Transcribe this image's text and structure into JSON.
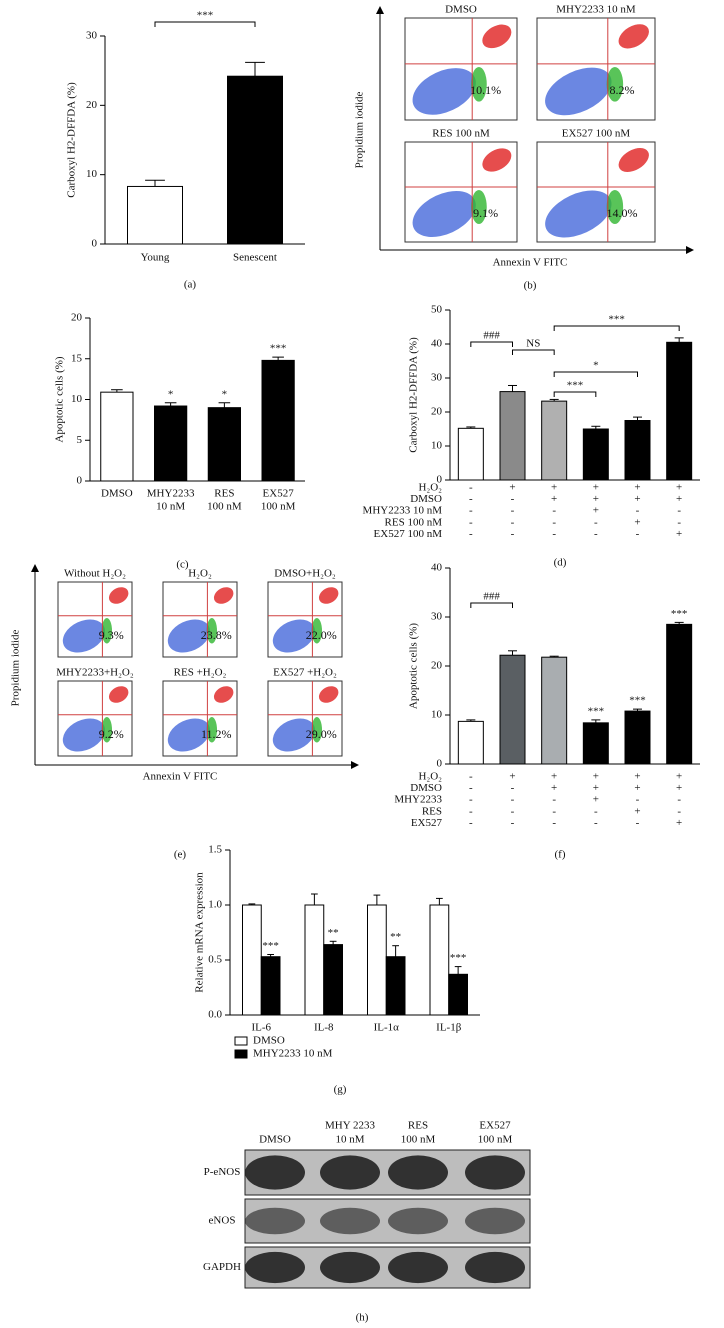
{
  "chart_data": [
    {
      "type": "bar",
      "panel_label": "(a)",
      "y_label": "Carboxyl H2-DFFDA (%)",
      "categories": [
        [
          "Young"
        ],
        [
          "Senescent"
        ]
      ],
      "values": [
        8.3,
        24.2
      ],
      "errors": [
        0.9,
        2.0
      ],
      "colors": [
        "#ffffff",
        "#000000"
      ],
      "ylim": [
        0,
        30
      ],
      "yticks": [
        0,
        10,
        20,
        30
      ],
      "brackets": [
        {
          "from": 0,
          "to": 1,
          "label": "***"
        }
      ]
    },
    {
      "type": "bar",
      "panel_label": "(c)",
      "y_label": "Apoptotic cells (%)",
      "categories": [
        [
          "DMSO"
        ],
        [
          "MHY2233",
          "10 nM"
        ],
        [
          "RES",
          "100 nM"
        ],
        [
          "EX527",
          "100 nM"
        ]
      ],
      "values": [
        10.9,
        9.2,
        9.0,
        14.8
      ],
      "errors": [
        0.3,
        0.4,
        0.6,
        0.4
      ],
      "significance": [
        null,
        "*",
        "*",
        "***"
      ],
      "colors": [
        "#ffffff",
        "#000000",
        "#000000",
        "#000000"
      ],
      "ylim": [
        0,
        20
      ],
      "yticks": [
        0,
        5,
        10,
        15,
        20
      ]
    },
    {
      "type": "bar",
      "panel_label": "(d)",
      "y_label": "Carboxyl H2-DFFDA (%)",
      "values": [
        15.2,
        26.0,
        23.2,
        15.0,
        17.5,
        40.5
      ],
      "errors": [
        0.4,
        1.8,
        0.5,
        0.8,
        1.0,
        1.3
      ],
      "colors": [
        "#ffffff",
        "#8a8a8a",
        "#b0b0b0",
        "#000000",
        "#000000",
        "#000000"
      ],
      "ylim": [
        0,
        50
      ],
      "yticks": [
        0,
        10,
        20,
        30,
        40,
        50
      ],
      "brackets": [
        {
          "from": 0,
          "to": 1,
          "label": "###"
        },
        {
          "from": 1,
          "to": 2,
          "label": "NS"
        },
        {
          "from": 2,
          "to": 3,
          "label": "***"
        },
        {
          "from": 2,
          "to": 4,
          "label": "*"
        },
        {
          "from": 2,
          "to": 5,
          "label": "***"
        }
      ],
      "conditions": [
        {
          "name": "H₂O₂",
          "signs": [
            "-",
            "+",
            "+",
            "+",
            "+",
            "+"
          ]
        },
        {
          "name": "DMSO",
          "signs": [
            "-",
            "-",
            "+",
            "+",
            "+",
            "+"
          ]
        },
        {
          "name": "MHY2233 10 nM",
          "signs": [
            "-",
            "-",
            "-",
            "+",
            "-",
            "-"
          ]
        },
        {
          "name": "RES 100 nM",
          "signs": [
            "-",
            "-",
            "-",
            "-",
            "+",
            "-"
          ]
        },
        {
          "name": "EX527 100 nM",
          "signs": [
            "-",
            "-",
            "-",
            "-",
            "-",
            "+"
          ]
        }
      ]
    },
    {
      "type": "bar",
      "panel_label": "(f)",
      "y_label": "Apoptotic cells (%)",
      "values": [
        8.7,
        22.2,
        21.8,
        8.4,
        10.8,
        28.5
      ],
      "errors": [
        0.3,
        0.9,
        0.2,
        0.6,
        0.4,
        0.4
      ],
      "significance": [
        null,
        null,
        null,
        "***",
        "***",
        "***"
      ],
      "colors": [
        "#ffffff",
        "#5a5f63",
        "#a9adb0",
        "#000000",
        "#000000",
        "#000000"
      ],
      "ylim": [
        0,
        40
      ],
      "yticks": [
        0,
        10,
        20,
        30,
        40
      ],
      "brackets": [
        {
          "from": 0,
          "to": 1,
          "label": "###"
        }
      ],
      "conditions": [
        {
          "name": "H₂O₂",
          "signs": [
            "-",
            "+",
            "+",
            "+",
            "+",
            "+"
          ]
        },
        {
          "name": "DMSO",
          "signs": [
            "-",
            "-",
            "+",
            "+",
            "+",
            "+"
          ]
        },
        {
          "name": "MHY2233",
          "signs": [
            "-",
            "-",
            "-",
            "+",
            "-",
            "-"
          ]
        },
        {
          "name": "RES",
          "signs": [
            "-",
            "-",
            "-",
            "-",
            "+",
            "-"
          ]
        },
        {
          "name": "EX527",
          "signs": [
            "-",
            "-",
            "-",
            "-",
            "-",
            "+"
          ]
        }
      ]
    },
    {
      "type": "grouped_bar",
      "panel_label": "(g)",
      "y_label": "Relative mRNA expression",
      "categories": [
        [
          "IL-6"
        ],
        [
          "IL-8"
        ],
        [
          "IL-1α"
        ],
        [
          "IL-1β"
        ]
      ],
      "series": [
        {
          "name": "DMSO",
          "color": "#ffffff",
          "values": [
            1.0,
            1.0,
            1.0,
            1.0
          ],
          "errors": [
            0.01,
            0.1,
            0.09,
            0.06
          ]
        },
        {
          "name": "MHY2233 10 nM",
          "color": "#000000",
          "values": [
            0.53,
            0.64,
            0.53,
            0.37
          ],
          "errors": [
            0.02,
            0.03,
            0.1,
            0.07
          ],
          "significance": [
            "***",
            "**",
            "**",
            "***"
          ]
        }
      ],
      "ylim": [
        0,
        1.5
      ],
      "yticks": [
        {
          "value": 0,
          "label": "0.0"
        },
        0.5,
        {
          "value": 1,
          "label": "1.0"
        },
        1.5
      ]
    }
  ],
  "flow_b": {
    "panel_label": "(b)",
    "y_label": "Propidium iodide",
    "x_label": "Annexin V FITC",
    "plots": [
      {
        "title": "DMSO",
        "percent": "10.1%"
      },
      {
        "title": "MHY2233 10 nM",
        "percent": "8.2%"
      },
      {
        "title": "RES 100 nM",
        "percent": "9.1%"
      },
      {
        "title": "EX527 100 nM",
        "percent": "14.0%"
      }
    ]
  },
  "flow_e": {
    "panel_label": "(e)",
    "y_label": "Propidium iodide",
    "x_label": "Annexin V FITC",
    "plots": [
      {
        "title": "Without H₂O₂",
        "percent": "9.3%"
      },
      {
        "title": "H₂O₂",
        "percent": "23.8%"
      },
      {
        "title": "DMSO+H₂O₂",
        "percent": "22.0%"
      },
      {
        "title": "MHY2233+H₂O₂",
        "percent": "9.2%"
      },
      {
        "title": "RES +H₂O₂",
        "percent": "11.2%"
      },
      {
        "title": "EX527 +H₂O₂",
        "percent": "29.0%"
      }
    ]
  },
  "western_blot": {
    "panel_label": "(h)",
    "lanes": [
      [
        "DMSO"
      ],
      [
        "MHY 2233",
        "10 nM"
      ],
      [
        "RES",
        "100 nM"
      ],
      [
        "EX527",
        "100 nM"
      ]
    ],
    "rows": [
      "P-eNOS",
      "eNOS",
      "GAPDH"
    ]
  }
}
